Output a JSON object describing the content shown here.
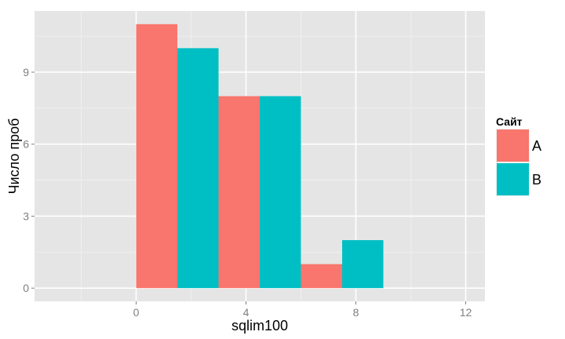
{
  "chart_data": {
    "type": "bar",
    "xlabel": "sqlim100",
    "ylabel": "Число проб",
    "xlim": [
      -3.7,
      12.7
    ],
    "ylim": [
      -0.55,
      11.55
    ],
    "x_ticks": [
      0,
      4,
      8,
      12
    ],
    "y_ticks": [
      0,
      3,
      6,
      9
    ],
    "x_minor": [
      -2,
      2,
      6,
      10
    ],
    "y_minor": [
      1.5,
      4.5,
      7.5,
      10.5
    ],
    "bin_width": 3,
    "bin_centers": [
      1.5,
      4.5,
      7.5
    ],
    "grid": true,
    "legend": {
      "title": "Сайт",
      "placement": "right"
    },
    "series": [
      {
        "name": "A",
        "color": "#F8766D",
        "values": [
          11,
          8,
          1
        ]
      },
      {
        "name": "B",
        "color": "#00BFC4",
        "values": [
          10,
          8,
          2
        ]
      }
    ]
  }
}
